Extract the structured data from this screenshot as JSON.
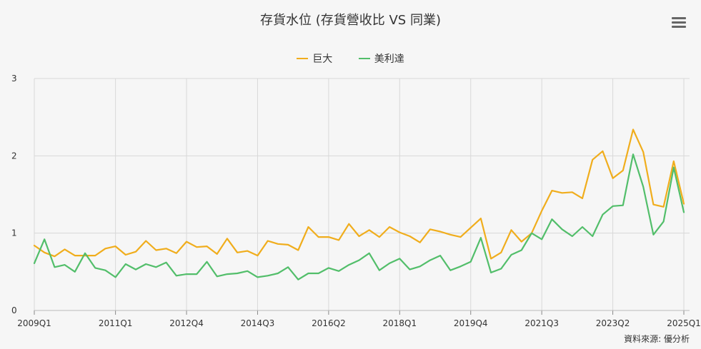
{
  "title": "存貨水位 (存貨營收比 VS 同業)",
  "credit": "資料來源: 優分析",
  "menu": {
    "icon": "hamburger-menu-icon"
  },
  "colors": {
    "巨大": "#f0ad1c",
    "美利達": "#52be6a",
    "grid": "#d8d8d8",
    "axis": "#333333"
  },
  "chart_data": {
    "type": "line",
    "title": "存貨水位 (存貨營收比 VS 同業)",
    "xlabel": "",
    "ylabel": "",
    "ylim": [
      0,
      3
    ],
    "yticks": [
      0,
      1,
      2,
      3
    ],
    "grid": true,
    "legend_position": "top-center",
    "x_tick_labels": [
      "2009Q1",
      "2011Q1",
      "2012Q4",
      "2014Q3",
      "2016Q2",
      "2018Q1",
      "2019Q4",
      "2021Q3",
      "2023Q2",
      "2025Q1"
    ],
    "x_tick_indices": [
      0,
      8,
      15,
      22,
      29,
      36,
      43,
      50,
      57,
      64
    ],
    "series": [
      {
        "name": "巨大",
        "values": [
          0.84,
          0.75,
          0.7,
          0.79,
          0.71,
          0.71,
          0.71,
          0.8,
          0.83,
          0.72,
          0.76,
          0.9,
          0.78,
          0.8,
          0.74,
          0.89,
          0.82,
          0.83,
          0.73,
          0.93,
          0.75,
          0.77,
          0.71,
          0.9,
          0.86,
          0.85,
          0.78,
          1.08,
          0.95,
          0.95,
          0.91,
          1.12,
          0.96,
          1.04,
          0.95,
          1.08,
          1.01,
          0.96,
          0.88,
          1.05,
          1.02,
          0.98,
          0.95,
          1.07,
          1.19,
          0.67,
          0.75,
          1.04,
          0.89,
          1.0,
          1.29,
          1.55,
          1.52,
          1.53,
          1.45,
          1.95,
          2.06,
          1.71,
          1.81,
          2.34,
          2.05,
          1.37,
          1.34,
          1.93,
          1.38
        ]
      },
      {
        "name": "美利達",
        "values": [
          0.61,
          0.92,
          0.56,
          0.59,
          0.5,
          0.74,
          0.55,
          0.52,
          0.43,
          0.6,
          0.53,
          0.6,
          0.56,
          0.62,
          0.45,
          0.47,
          0.47,
          0.63,
          0.44,
          0.47,
          0.48,
          0.51,
          0.43,
          0.45,
          0.48,
          0.56,
          0.4,
          0.48,
          0.48,
          0.55,
          0.51,
          0.59,
          0.65,
          0.74,
          0.52,
          0.61,
          0.67,
          0.53,
          0.57,
          0.65,
          0.71,
          0.52,
          0.57,
          0.63,
          0.94,
          0.49,
          0.54,
          0.72,
          0.78,
          1.0,
          0.92,
          1.18,
          1.05,
          0.96,
          1.08,
          0.96,
          1.24,
          1.35,
          1.36,
          2.02,
          1.6,
          0.98,
          1.15,
          1.85,
          1.27
        ]
      }
    ]
  }
}
